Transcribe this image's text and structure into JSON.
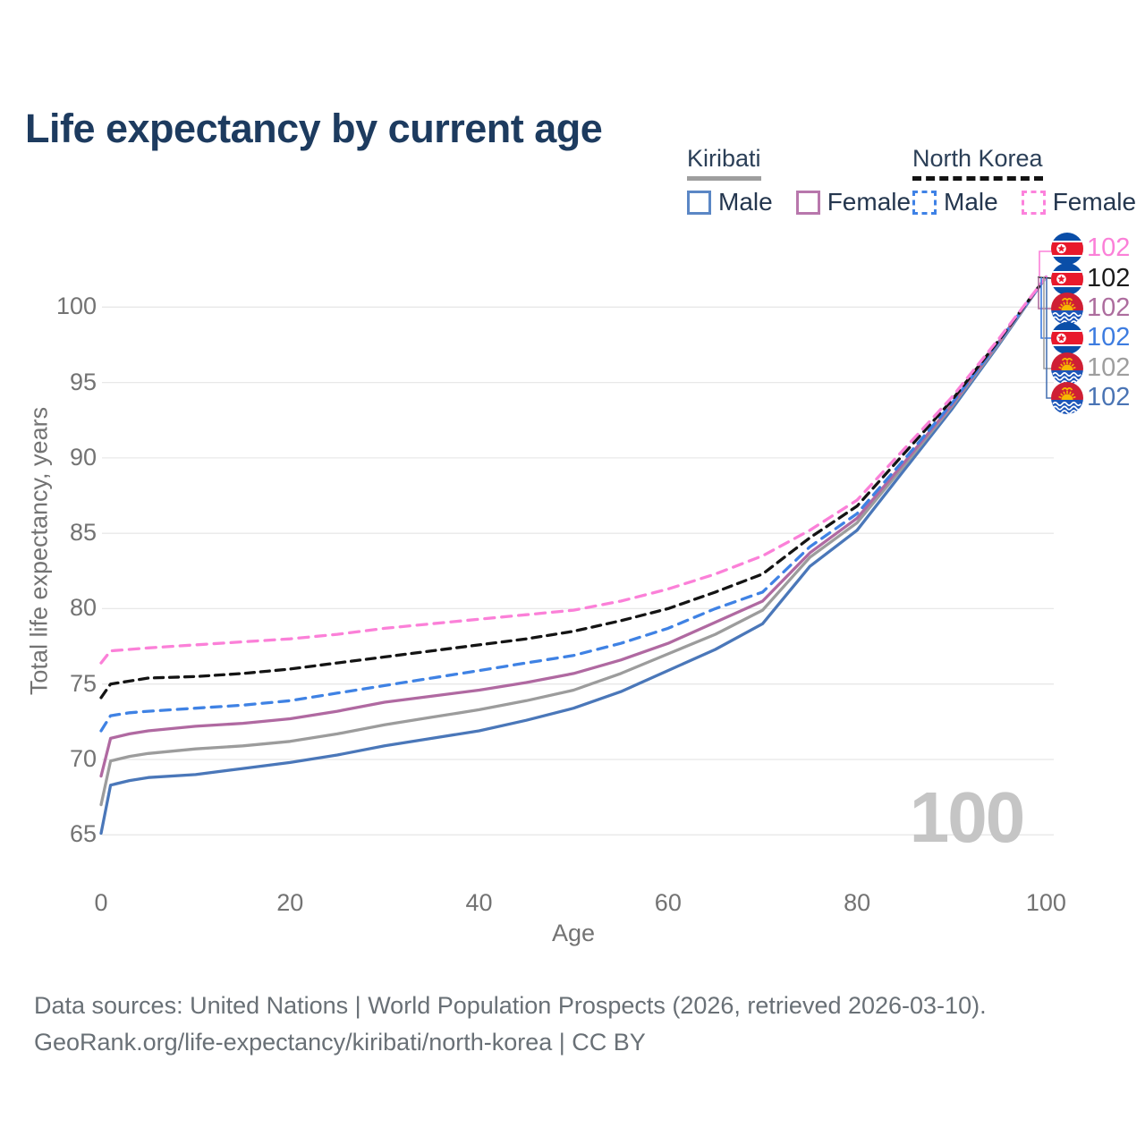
{
  "title": "Life expectancy by current age",
  "legend": {
    "groups": [
      {
        "label": "Kiribati",
        "line_style": "solid",
        "underline_color": "#9e9e9e",
        "items": [
          {
            "label": "Male",
            "color": "#4a77b9"
          },
          {
            "label": "Female",
            "color": "#b069a1"
          }
        ]
      },
      {
        "label": "North Korea",
        "line_style": "dashed",
        "underline_color": "#131313",
        "items": [
          {
            "label": "Male",
            "color": "#3f82e4"
          },
          {
            "label": "Female",
            "color": "#fb80d8"
          }
        ]
      }
    ]
  },
  "axes": {
    "x_label": "Age",
    "y_label": "Total life expectancy, years",
    "x_ticks": [
      0,
      20,
      40,
      60,
      80,
      100
    ],
    "y_ticks": [
      65,
      70,
      75,
      80,
      85,
      90,
      95,
      100
    ]
  },
  "hover_value": "100",
  "end_labels": [
    {
      "value": "102",
      "color": "#fb80d8",
      "flag": "north-korea",
      "series": "North Korea Female"
    },
    {
      "value": "102",
      "color": "#1b1b1b",
      "flag": "north-korea",
      "series": "North Korea Both sexes"
    },
    {
      "value": "102",
      "color": "#ad6d9e",
      "flag": "kiribati",
      "series": "Kiribati Female"
    },
    {
      "value": "102",
      "color": "#3d7ce0",
      "flag": "north-korea",
      "series": "North Korea Male"
    },
    {
      "value": "102",
      "color": "#9e9e9e",
      "flag": "kiribati",
      "series": "Kiribati Both sexes"
    },
    {
      "value": "102",
      "color": "#4a74b4",
      "flag": "kiribati",
      "series": "Kiribati Male"
    }
  ],
  "chart_data": {
    "type": "line",
    "title": "Life expectancy by current age",
    "xlabel": "Age",
    "ylabel": "Total life expectancy, years",
    "xlim": [
      0,
      100
    ],
    "ylim": [
      63.5,
      102.5
    ],
    "grid": "horizontal",
    "legend_position": "top-right",
    "series": [
      {
        "id": "kiribati-male",
        "name": "Kiribati Male",
        "country": "Kiribati",
        "sex": "Male",
        "color": "#4a77b9",
        "dash": null,
        "points": [
          [
            0,
            65.1
          ],
          [
            1,
            68.3
          ],
          [
            3,
            68.6
          ],
          [
            5,
            68.8
          ],
          [
            10,
            69.0
          ],
          [
            15,
            69.4
          ],
          [
            20,
            69.8
          ],
          [
            25,
            70.3
          ],
          [
            30,
            70.9
          ],
          [
            35,
            71.4
          ],
          [
            40,
            71.9
          ],
          [
            45,
            72.6
          ],
          [
            50,
            73.4
          ],
          [
            55,
            74.5
          ],
          [
            60,
            75.9
          ],
          [
            65,
            77.3
          ],
          [
            70,
            79.0
          ],
          [
            75,
            82.8
          ],
          [
            80,
            85.2
          ],
          [
            85,
            89.2
          ],
          [
            90,
            93.2
          ],
          [
            95,
            97.5
          ],
          [
            100,
            102
          ]
        ]
      },
      {
        "id": "kiribati-both",
        "name": "Kiribati Both sexes",
        "country": "Kiribati",
        "sex": "Both",
        "color": "#9c9c9c",
        "dash": null,
        "points": [
          [
            0,
            67.0
          ],
          [
            1,
            69.9
          ],
          [
            3,
            70.2
          ],
          [
            5,
            70.4
          ],
          [
            10,
            70.7
          ],
          [
            15,
            70.9
          ],
          [
            20,
            71.2
          ],
          [
            25,
            71.7
          ],
          [
            30,
            72.3
          ],
          [
            35,
            72.8
          ],
          [
            40,
            73.3
          ],
          [
            45,
            73.9
          ],
          [
            50,
            74.6
          ],
          [
            55,
            75.7
          ],
          [
            60,
            77.0
          ],
          [
            65,
            78.3
          ],
          [
            70,
            79.9
          ],
          [
            75,
            83.4
          ],
          [
            80,
            85.7
          ],
          [
            85,
            89.5
          ],
          [
            90,
            93.4
          ],
          [
            95,
            97.6
          ],
          [
            100,
            102
          ]
        ]
      },
      {
        "id": "kiribati-female",
        "name": "Kiribati Female",
        "country": "Kiribati",
        "sex": "Female",
        "color": "#b069a1",
        "dash": null,
        "points": [
          [
            0,
            68.9
          ],
          [
            1,
            71.4
          ],
          [
            3,
            71.7
          ],
          [
            5,
            71.9
          ],
          [
            10,
            72.2
          ],
          [
            15,
            72.4
          ],
          [
            20,
            72.7
          ],
          [
            25,
            73.2
          ],
          [
            30,
            73.8
          ],
          [
            35,
            74.2
          ],
          [
            40,
            74.6
          ],
          [
            45,
            75.1
          ],
          [
            50,
            75.7
          ],
          [
            55,
            76.6
          ],
          [
            60,
            77.7
          ],
          [
            65,
            79.1
          ],
          [
            70,
            80.5
          ],
          [
            75,
            83.7
          ],
          [
            80,
            86.0
          ],
          [
            85,
            89.7
          ],
          [
            90,
            93.5
          ],
          [
            95,
            97.7
          ],
          [
            100,
            102
          ]
        ]
      },
      {
        "id": "north-korea-male",
        "name": "North Korea Male",
        "country": "North Korea",
        "sex": "Male",
        "color": "#3f82e4",
        "dash": "11 8",
        "points": [
          [
            0,
            71.9
          ],
          [
            1,
            72.9
          ],
          [
            3,
            73.1
          ],
          [
            5,
            73.2
          ],
          [
            10,
            73.4
          ],
          [
            15,
            73.6
          ],
          [
            20,
            73.9
          ],
          [
            25,
            74.4
          ],
          [
            30,
            74.9
          ],
          [
            35,
            75.4
          ],
          [
            40,
            75.9
          ],
          [
            45,
            76.4
          ],
          [
            50,
            76.9
          ],
          [
            55,
            77.7
          ],
          [
            60,
            78.7
          ],
          [
            65,
            80.0
          ],
          [
            70,
            81.1
          ],
          [
            75,
            84.1
          ],
          [
            80,
            86.3
          ],
          [
            85,
            89.9
          ],
          [
            90,
            93.6
          ],
          [
            95,
            97.7
          ],
          [
            100,
            102
          ]
        ]
      },
      {
        "id": "north-korea-both",
        "name": "North Korea Both sexes",
        "country": "North Korea",
        "sex": "Both",
        "color": "#141414",
        "dash": "10 7",
        "points": [
          [
            0,
            74.1
          ],
          [
            1,
            75.0
          ],
          [
            3,
            75.2
          ],
          [
            5,
            75.4
          ],
          [
            10,
            75.5
          ],
          [
            15,
            75.7
          ],
          [
            20,
            76.0
          ],
          [
            25,
            76.4
          ],
          [
            30,
            76.8
          ],
          [
            35,
            77.2
          ],
          [
            40,
            77.6
          ],
          [
            45,
            78.0
          ],
          [
            50,
            78.5
          ],
          [
            55,
            79.2
          ],
          [
            60,
            80.0
          ],
          [
            65,
            81.1
          ],
          [
            70,
            82.3
          ],
          [
            75,
            84.7
          ],
          [
            80,
            86.8
          ],
          [
            85,
            90.3
          ],
          [
            90,
            93.8
          ],
          [
            95,
            97.8
          ],
          [
            100,
            102
          ]
        ]
      },
      {
        "id": "north-korea-female",
        "name": "North Korea Female",
        "country": "North Korea",
        "sex": "Female",
        "color": "#fb80d8",
        "dash": "11 8",
        "points": [
          [
            0,
            76.4
          ],
          [
            1,
            77.2
          ],
          [
            3,
            77.3
          ],
          [
            5,
            77.4
          ],
          [
            10,
            77.6
          ],
          [
            15,
            77.8
          ],
          [
            20,
            78.0
          ],
          [
            25,
            78.3
          ],
          [
            30,
            78.7
          ],
          [
            35,
            79.0
          ],
          [
            40,
            79.3
          ],
          [
            45,
            79.6
          ],
          [
            50,
            79.9
          ],
          [
            55,
            80.5
          ],
          [
            60,
            81.3
          ],
          [
            65,
            82.3
          ],
          [
            70,
            83.5
          ],
          [
            75,
            85.2
          ],
          [
            80,
            87.2
          ],
          [
            85,
            90.6
          ],
          [
            90,
            94.0
          ],
          [
            95,
            97.9
          ],
          [
            100,
            102
          ]
        ]
      }
    ]
  },
  "footer": {
    "line1": "Data sources: United Nations | World Population Prospects (2026, retrieved 2026-03-10).",
    "line2": "GeoRank.org/life-expectancy/kiribati/north-korea | CC BY"
  },
  "colors": {
    "title": "#1d3b5f",
    "grid": "#e8e8e8",
    "tick_text": "#737373",
    "footer_text": "#697076",
    "hover_indicator": "#c5c5c5"
  }
}
